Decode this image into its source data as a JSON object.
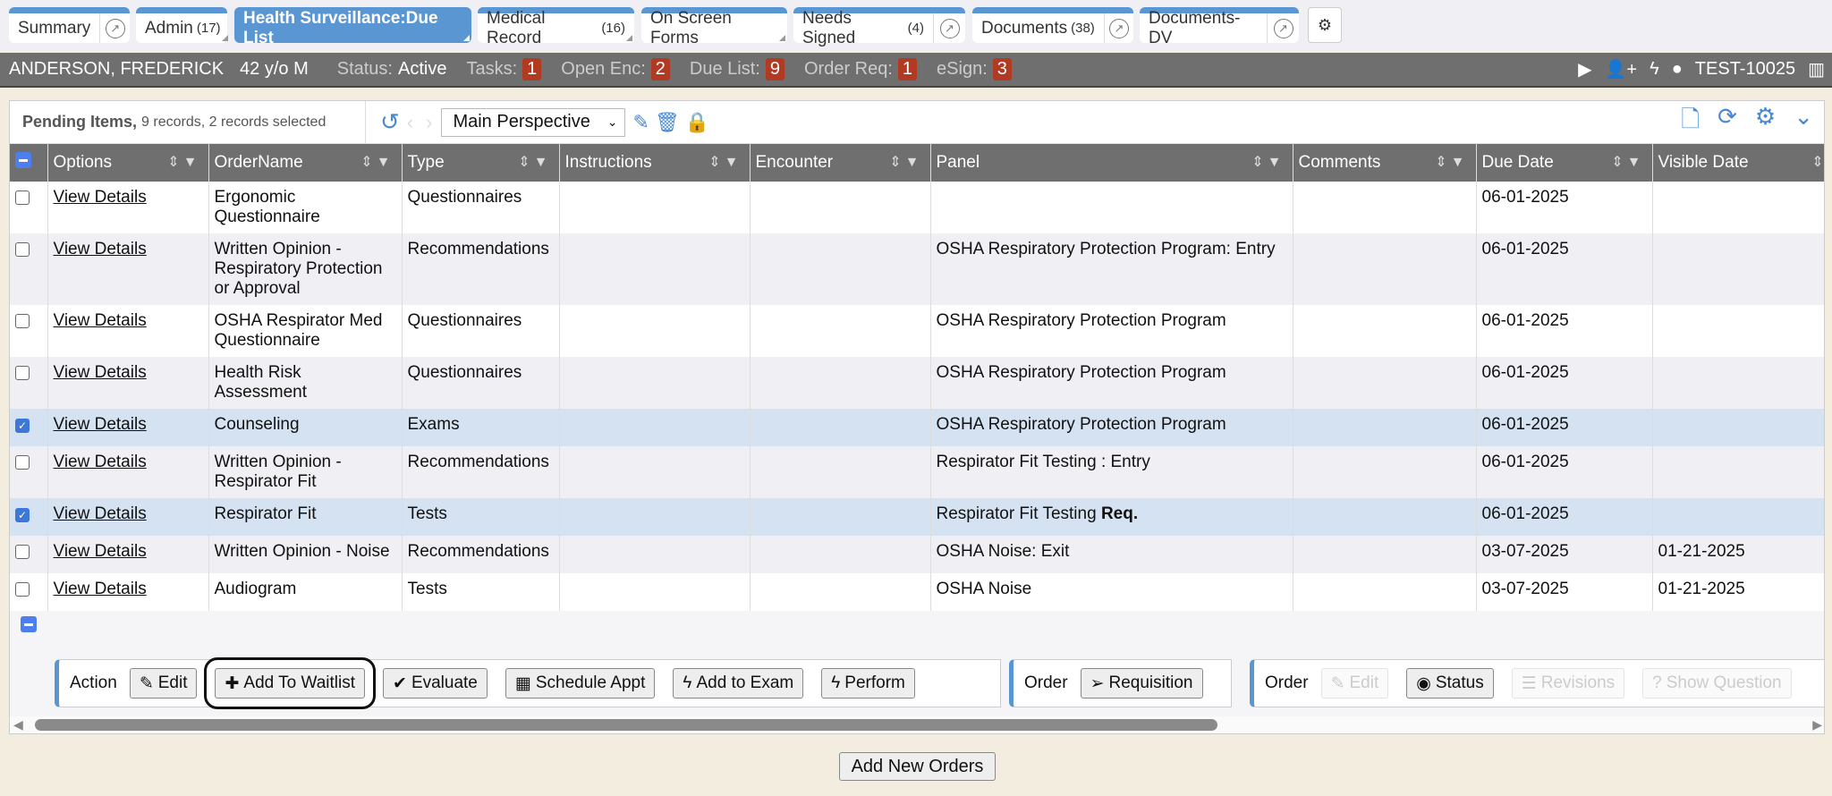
{
  "tabs": [
    {
      "label": "Summary",
      "count": "",
      "popout": true
    },
    {
      "label": "Admin",
      "count": "(17)",
      "popout": false
    },
    {
      "label": "Health Surveillance:Due List",
      "count": "",
      "popout": false,
      "active": true
    },
    {
      "label": "Medical Record",
      "count": "(16)",
      "popout": false
    },
    {
      "label": "On Screen Forms",
      "count": "",
      "popout": false
    },
    {
      "label": "Needs Signed",
      "count": "(4)",
      "popout": true
    },
    {
      "label": "Documents",
      "count": "(38)",
      "popout": true
    },
    {
      "label": "Documents-DV",
      "count": "",
      "popout": true
    }
  ],
  "patient": {
    "name": "ANDERSON, FREDERICK",
    "age": "42 y/o M",
    "status_label": "Status:",
    "status": "Active",
    "tasks_label": "Tasks:",
    "tasks": "1",
    "openenc_label": "Open Enc:",
    "openenc": "2",
    "duelist_label": "Due List:",
    "duelist": "9",
    "orderreq_label": "Order Req:",
    "orderreq": "1",
    "esign_label": "eSign:",
    "esign": "3",
    "user": "TEST-10025"
  },
  "grid": {
    "title": "Pending Items,",
    "subtitle": "9 records, 2 records selected",
    "perspective": "Main Perspective",
    "columns": [
      "Options",
      "OrderName",
      "Type",
      "Instructions",
      "Encounter",
      "Panel",
      "Comments",
      "Due Date",
      "Visible Date"
    ],
    "rows": [
      {
        "checked": false,
        "option": "View Details",
        "order": "Ergonomic Questionnaire",
        "type": "Questionnaires",
        "panel": "",
        "panel_bold": "",
        "due": "06-01-2025",
        "visible": ""
      },
      {
        "checked": false,
        "option": "View Details",
        "order": "Written Opinion - Respiratory Protection or Approval",
        "type": "Recommendations",
        "panel": "OSHA Respiratory Protection Program: Entry",
        "panel_bold": "",
        "due": "06-01-2025",
        "visible": ""
      },
      {
        "checked": false,
        "option": "View Details",
        "order": "OSHA Respirator Med Questionnaire",
        "type": "Questionnaires",
        "panel": "OSHA Respiratory Protection Program",
        "panel_bold": "",
        "due": "06-01-2025",
        "visible": ""
      },
      {
        "checked": false,
        "option": "View Details",
        "order": "Health Risk Assessment",
        "type": "Questionnaires",
        "panel": "OSHA Respiratory Protection Program",
        "panel_bold": "",
        "due": "06-01-2025",
        "visible": ""
      },
      {
        "checked": true,
        "option": "View Details",
        "order": "Counseling",
        "type": "Exams",
        "panel": "OSHA Respiratory Protection Program",
        "panel_bold": "",
        "due": "06-01-2025",
        "visible": ""
      },
      {
        "checked": false,
        "option": "View Details",
        "order": "Written Opinion - Respirator Fit",
        "type": "Recommendations",
        "panel": "Respirator Fit Testing : Entry",
        "panel_bold": "",
        "due": "06-01-2025",
        "visible": ""
      },
      {
        "checked": true,
        "option": "View Details",
        "order": "Respirator Fit",
        "type": "Tests",
        "panel": "Respirator Fit Testing ",
        "panel_bold": "Req.",
        "due": "06-01-2025",
        "visible": ""
      },
      {
        "checked": false,
        "option": "View Details",
        "order": "Written Opinion - Noise",
        "type": "Recommendations",
        "panel": "OSHA Noise: Exit",
        "panel_bold": "",
        "due": "03-07-2025",
        "visible": "01-21-2025"
      },
      {
        "checked": false,
        "option": "View Details",
        "order": "Audiogram",
        "type": "Tests",
        "panel": "OSHA Noise",
        "panel_bold": "",
        "due": "03-07-2025",
        "visible": "01-21-2025"
      }
    ]
  },
  "actions": {
    "action_label": "Action",
    "edit": "Edit",
    "waitlist": "Add To Waitlist",
    "evaluate": "Evaluate",
    "schedule": "Schedule Appt",
    "add_exam": "Add to Exam",
    "perform": "Perform",
    "order_label": "Order",
    "requisition": "Requisition",
    "order2_label": "Order",
    "edit2": "Edit",
    "status": "Status",
    "revisions": "Revisions",
    "show_question": "Show Question"
  },
  "add_new_orders": "Add New Orders",
  "colors": {
    "accent": "#5a96d2",
    "badge": "#b03a22",
    "header": "#6f6f6f",
    "selected_row": "#d4e2f1"
  }
}
